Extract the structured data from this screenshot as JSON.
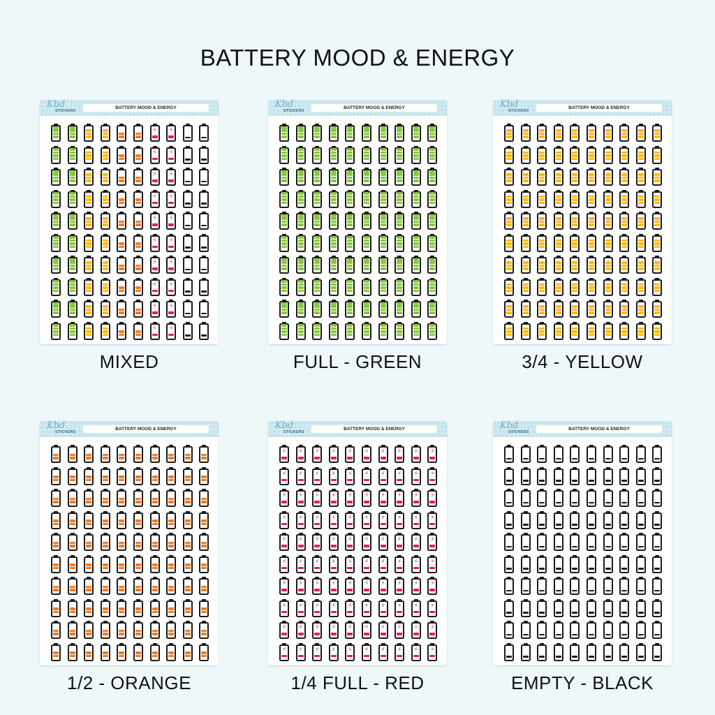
{
  "title": "BATTERY MOOD & ENERGY",
  "sheet_label": "BATTERY MOOD & ENERGY",
  "brand": {
    "logo": "Kbd",
    "sub": "STICKERS"
  },
  "colors": {
    "green": "#8cc63f",
    "yellow": "#fdb913",
    "orange": "#f47a20",
    "red": "#e6186f",
    "black": "#1b1b1b",
    "outline": "#1b1b1b",
    "header": "#cfe9f1"
  },
  "bolt_glyph": "⚡",
  "sheets": [
    {
      "id": "mixed",
      "caption": "MIXED",
      "variants": [
        "full-green",
        "full-green",
        "threequarter-yellow",
        "threequarter-yellow",
        "half-orange",
        "half-orange",
        "quarter-red",
        "quarter-red",
        "empty-black",
        "empty-black"
      ]
    },
    {
      "id": "green",
      "caption": "FULL - GREEN",
      "variants": [
        "full-green"
      ]
    },
    {
      "id": "yellow",
      "caption": "3/4 - YELLOW",
      "variants": [
        "threequarter-yellow"
      ]
    },
    {
      "id": "orange",
      "caption": "1/2 - ORANGE",
      "variants": [
        "half-orange"
      ]
    },
    {
      "id": "red",
      "caption": "1/4 FULL - RED",
      "variants": [
        "quarter-red"
      ]
    },
    {
      "id": "black",
      "caption": "EMPTY - BLACK",
      "variants": [
        "empty-black"
      ]
    }
  ],
  "battery_levels": {
    "full-green": {
      "color": "green",
      "segments": 4,
      "bolt": false
    },
    "threequarter-yellow": {
      "color": "yellow",
      "segments": 3,
      "bolt": false
    },
    "half-orange": {
      "color": "orange",
      "segments": 2,
      "bolt": false
    },
    "quarter-red": {
      "color": "red",
      "segments": 1,
      "bolt": true
    },
    "empty-black": {
      "color": "black",
      "segments": 0,
      "bolt": false
    }
  },
  "grid": {
    "columns": 10,
    "rows": 10
  }
}
